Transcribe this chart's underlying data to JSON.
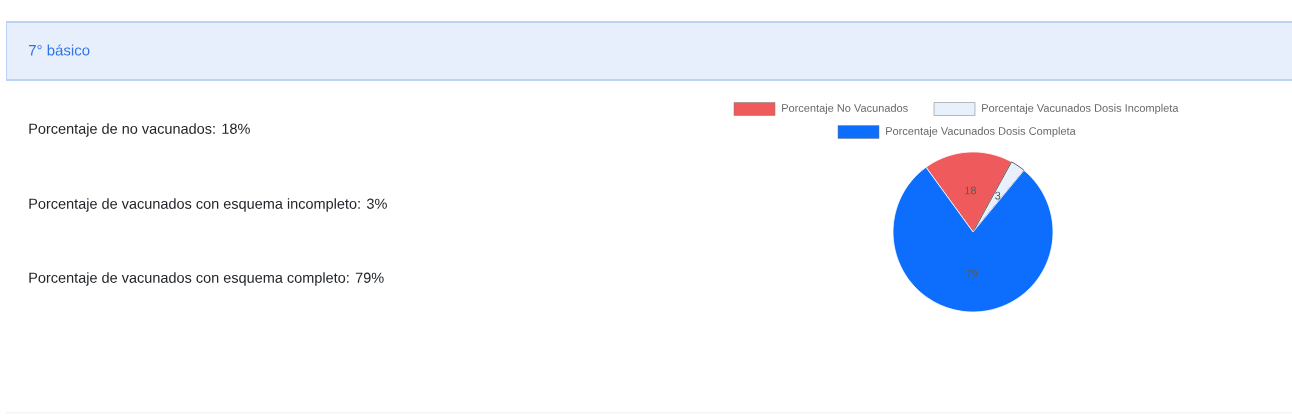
{
  "chart_data": [
    {
      "type": "other",
      "title": "7° básico",
      "annotations": [
        "Porcentaje de no vacunados: 18%",
        "Porcentaje de vacunados con esquema incompleto: 3%",
        "Porcentaje de vacunados con esquema completo: 79%"
      ]
    },
    {
      "type": "pie",
      "categories": [
        "Porcentaje No Vacunados",
        "Porcentaje Vacunados Dosis Incompleta",
        "Porcentaje Vacunados Dosis Completa"
      ],
      "values": [
        18,
        3,
        79
      ],
      "colors": [
        "#ef5b5d",
        "#e8f0fc",
        "#0d6efd"
      ],
      "legend": "top",
      "data_labels": true
    }
  ]
}
